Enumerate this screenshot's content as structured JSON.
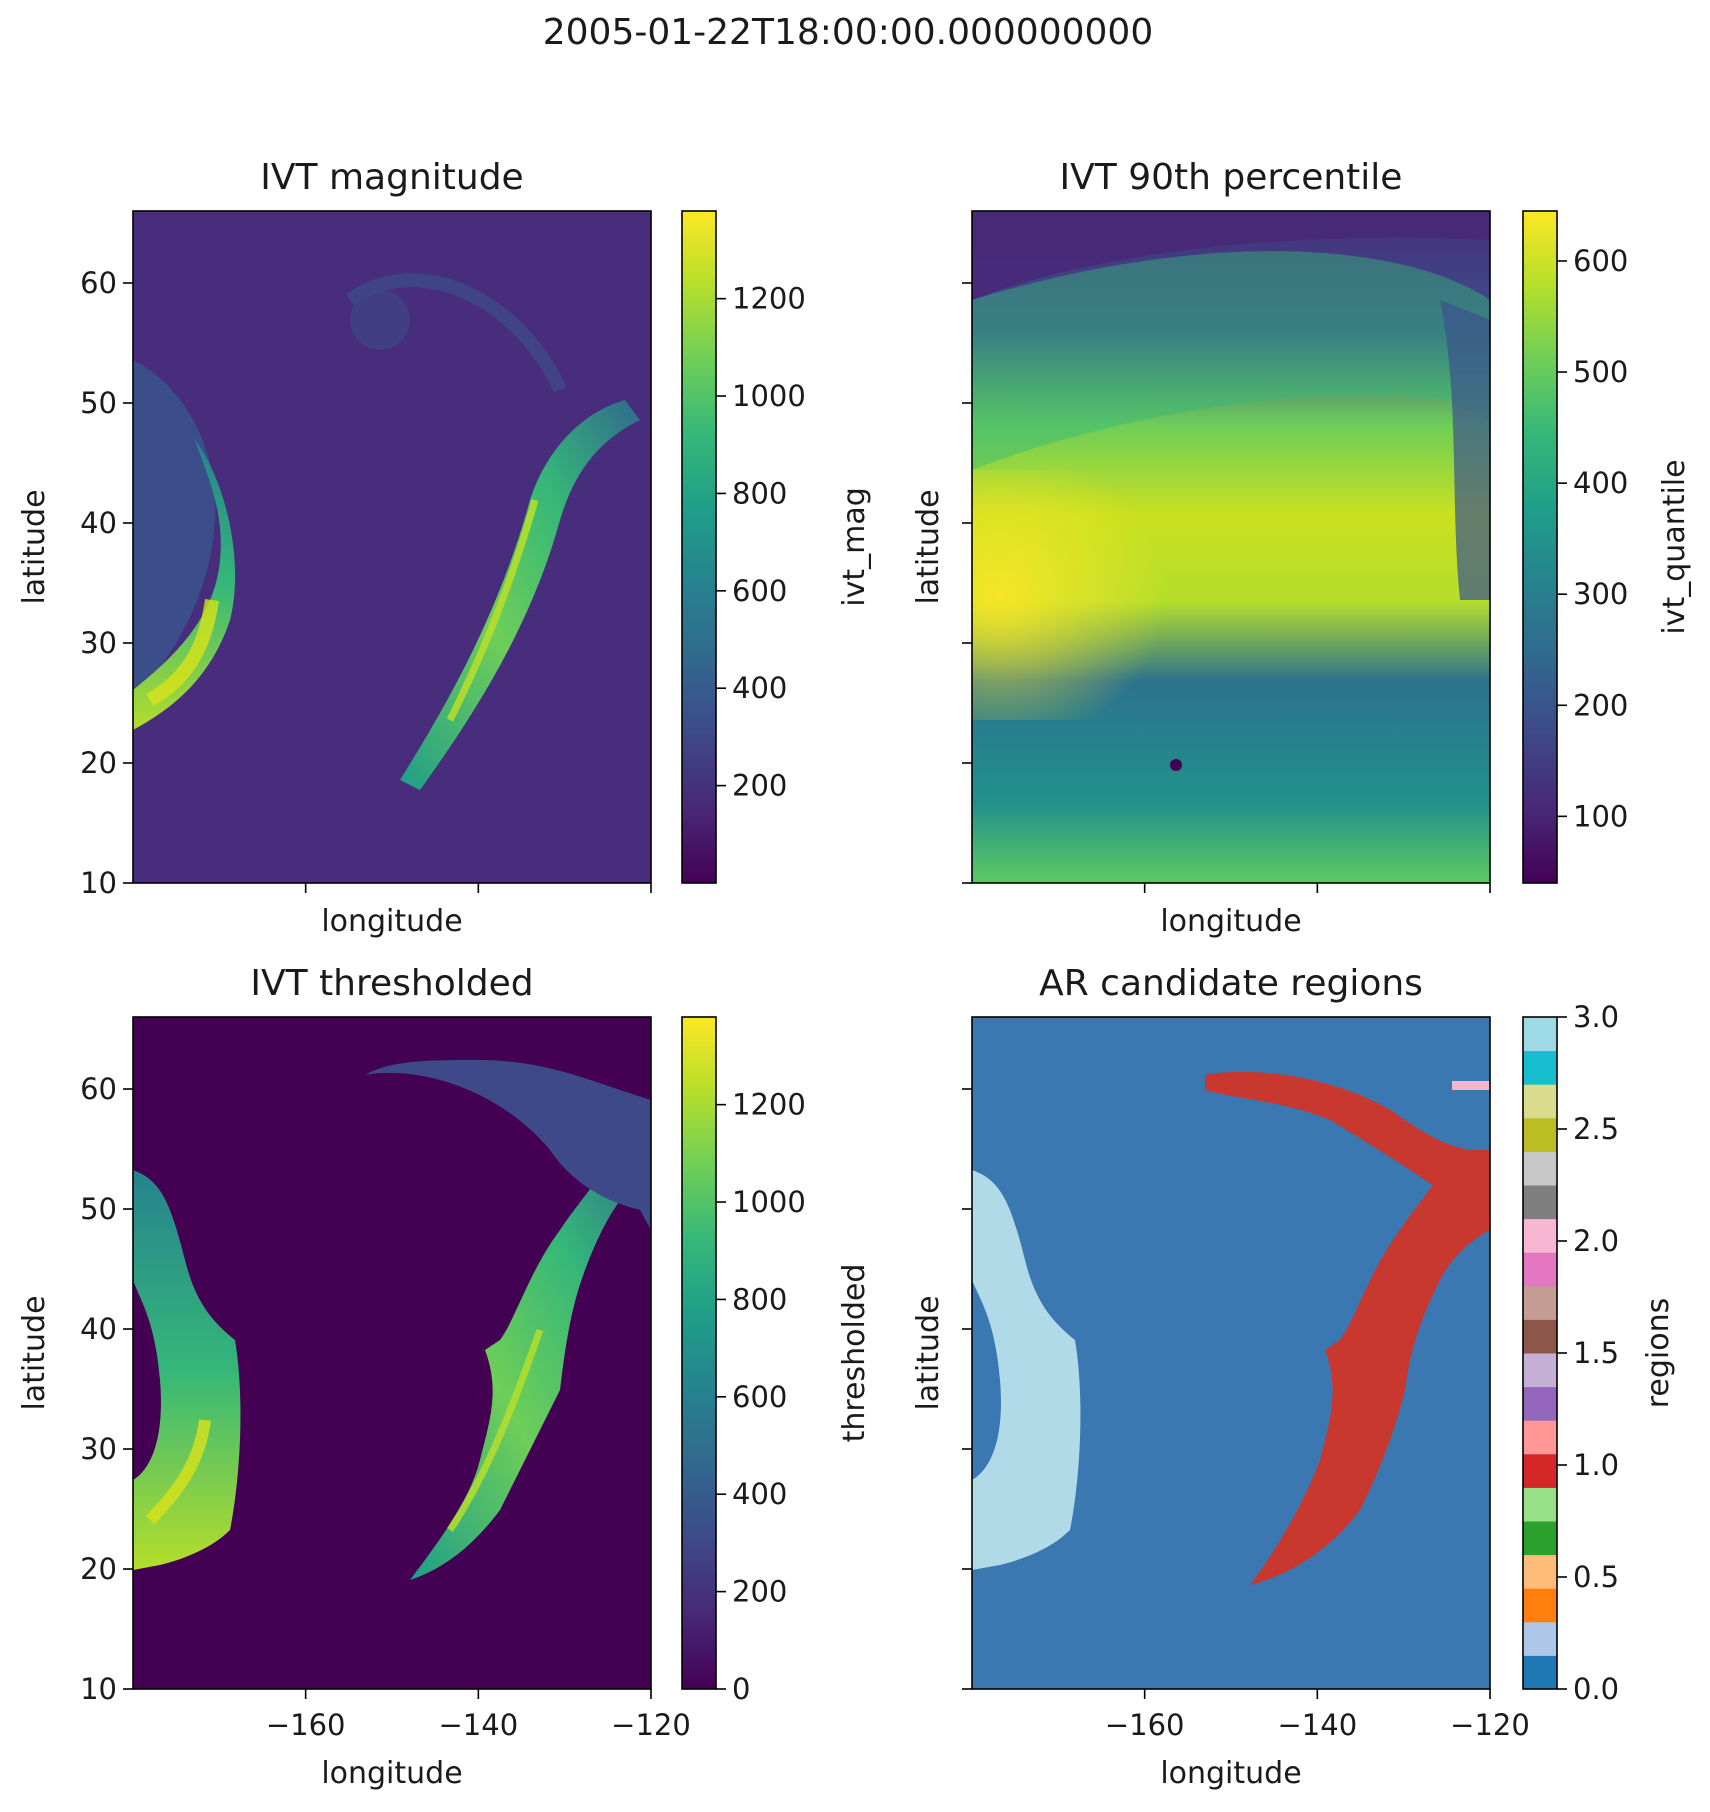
{
  "figure": {
    "suptitle": "2005-01-22T18:00:00.000000000"
  },
  "colors": {
    "viridis": [
      "#440154",
      "#482878",
      "#3e4989",
      "#31688e",
      "#26828e",
      "#1f9e89",
      "#35b779",
      "#6ece58",
      "#b5de2b",
      "#fde725"
    ],
    "tab20": [
      "#1f77b4",
      "#aec7e8",
      "#ff7f0e",
      "#ffbb78",
      "#2ca02c",
      "#98df8a",
      "#d62728",
      "#ff9896",
      "#9467bd",
      "#c5b0d5",
      "#8c564b",
      "#c49c94",
      "#e377c2",
      "#f7b6d2",
      "#7f7f7f",
      "#c7c7c7",
      "#bcbd22",
      "#dbdb8d",
      "#17becf",
      "#9edae5"
    ],
    "background_region": "#3b77b0",
    "region_1": "#c8382e",
    "region_2": "#b0dae8",
    "region_3": "#f2b8cc"
  },
  "chart_data": [
    {
      "type": "heatmap",
      "title": "IVT magnitude",
      "xlabel": "longitude",
      "ylabel": "latitude",
      "colorbar_label": "ivt_mag",
      "colormap": "viridis",
      "xlim": [
        -180,
        -120
      ],
      "ylim": [
        10,
        66
      ],
      "vrange": [
        0,
        1380
      ],
      "x_ticks": [
        -160,
        -140,
        -120
      ],
      "x_tick_labels": [
        "",
        "",
        ""
      ],
      "y_ticks": [
        10,
        20,
        30,
        40,
        50,
        60
      ],
      "y_tick_labels": [
        "10",
        "20",
        "30",
        "40",
        "50",
        "60"
      ],
      "colorbar_ticks": [
        200,
        400,
        600,
        800,
        1000,
        1200
      ],
      "colorbar_tick_labels": [
        "200",
        "400",
        "600",
        "800",
        "1000",
        "1200"
      ]
    },
    {
      "type": "heatmap",
      "title": "IVT 90th percentile",
      "xlabel": "longitude",
      "ylabel": "latitude",
      "colorbar_label": "ivt_quantile",
      "colormap": "viridis",
      "xlim": [
        -180,
        -120
      ],
      "ylim": [
        10,
        66
      ],
      "vrange": [
        40,
        645
      ],
      "x_ticks": [
        -160,
        -140,
        -120
      ],
      "x_tick_labels": [
        "",
        "",
        ""
      ],
      "y_ticks": [
        10,
        20,
        30,
        40,
        50,
        60
      ],
      "y_tick_labels": [
        "",
        "",
        "",
        "",
        "",
        ""
      ],
      "colorbar_ticks": [
        100,
        200,
        300,
        400,
        500,
        600
      ],
      "colorbar_tick_labels": [
        "100",
        "200",
        "300",
        "400",
        "500",
        "600"
      ]
    },
    {
      "type": "heatmap",
      "title": "IVT thresholded",
      "xlabel": "longitude",
      "ylabel": "latitude",
      "colorbar_label": "thresholded",
      "colormap": "viridis",
      "xlim": [
        -180,
        -120
      ],
      "ylim": [
        10,
        66
      ],
      "vrange": [
        0,
        1380
      ],
      "x_ticks": [
        -160,
        -140,
        -120
      ],
      "x_tick_labels": [
        "−160",
        "−140",
        "−120"
      ],
      "y_ticks": [
        10,
        20,
        30,
        40,
        50,
        60
      ],
      "y_tick_labels": [
        "10",
        "20",
        "30",
        "40",
        "50",
        "60"
      ],
      "colorbar_ticks": [
        0,
        200,
        400,
        600,
        800,
        1000,
        1200
      ],
      "colorbar_tick_labels": [
        "0",
        "200",
        "400",
        "600",
        "800",
        "1000",
        "1200"
      ]
    },
    {
      "type": "heatmap",
      "title": "AR candidate regions",
      "xlabel": "longitude",
      "ylabel": "latitude",
      "colorbar_label": "regions",
      "colormap": "tab20",
      "xlim": [
        -180,
        -120
      ],
      "ylim": [
        10,
        66
      ],
      "vrange": [
        0,
        3
      ],
      "x_ticks": [
        -160,
        -140,
        -120
      ],
      "x_tick_labels": [
        "−160",
        "−140",
        "−120"
      ],
      "y_ticks": [
        10,
        20,
        30,
        40,
        50,
        60
      ],
      "y_tick_labels": [
        "",
        "",
        "",
        "",
        "",
        ""
      ],
      "colorbar_ticks": [
        0,
        0.5,
        1,
        1.5,
        2,
        2.5,
        3
      ],
      "colorbar_tick_labels": [
        "0.0",
        "0.5",
        "1.0",
        "1.5",
        "2.0",
        "2.5",
        "3.0"
      ]
    }
  ]
}
